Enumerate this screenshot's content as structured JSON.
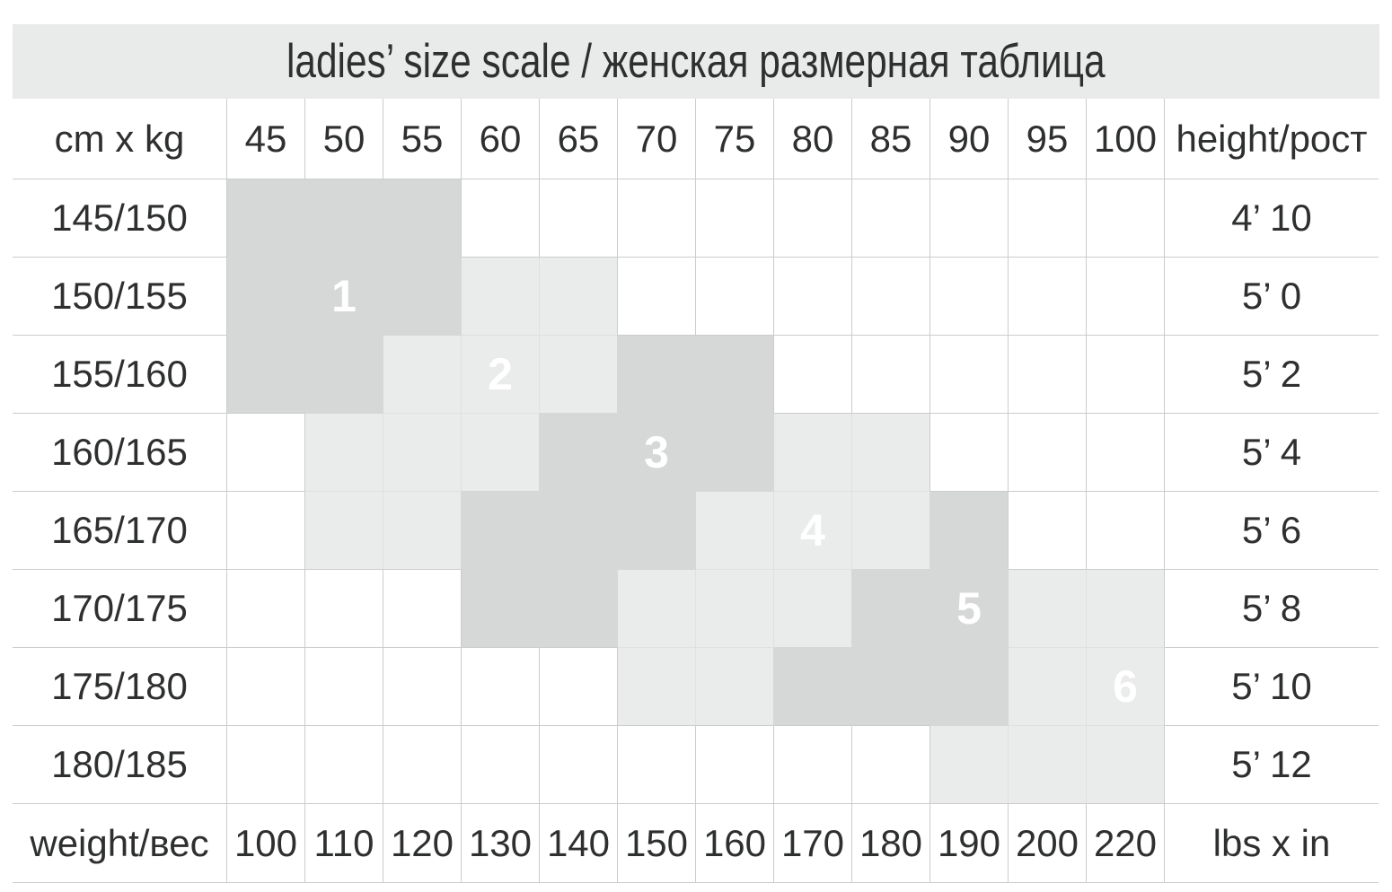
{
  "chart_data": {
    "type": "table",
    "title": "ladies’ size scale / женская размерная таблица",
    "corner_top_left": "cm x kg",
    "corner_top_right": "height/рост",
    "corner_bottom_left": "weight/вес",
    "corner_bottom_right": "lbs x in",
    "columns_kg": [
      "45",
      "50",
      "55",
      "60",
      "65",
      "70",
      "75",
      "80",
      "85",
      "90",
      "95",
      "100"
    ],
    "columns_lbs": [
      "100",
      "110",
      "120",
      "130",
      "140",
      "150",
      "160",
      "170",
      "180",
      "190",
      "200",
      "220"
    ],
    "shading_legend": {
      "0": "none",
      "1": "light",
      "2": "dark"
    },
    "rows": [
      {
        "height_cm": "145/150",
        "height_ft": "4’ 10",
        "shading": [
          2,
          2,
          2,
          0,
          0,
          0,
          0,
          0,
          0,
          0,
          0,
          0
        ],
        "size_label": "",
        "size_col": -1
      },
      {
        "height_cm": "150/155",
        "height_ft": "5’ 0",
        "shading": [
          2,
          2,
          2,
          1,
          1,
          0,
          0,
          0,
          0,
          0,
          0,
          0
        ],
        "size_label": "1",
        "size_col": 1
      },
      {
        "height_cm": "155/160",
        "height_ft": "5’ 2",
        "shading": [
          2,
          2,
          1,
          1,
          1,
          2,
          2,
          0,
          0,
          0,
          0,
          0
        ],
        "size_label": "2",
        "size_col": 3
      },
      {
        "height_cm": "160/165",
        "height_ft": "5’ 4",
        "shading": [
          0,
          1,
          1,
          1,
          2,
          2,
          2,
          1,
          1,
          0,
          0,
          0
        ],
        "size_label": "3",
        "size_col": 5
      },
      {
        "height_cm": "165/170",
        "height_ft": "5’ 6",
        "shading": [
          0,
          1,
          1,
          2,
          2,
          2,
          1,
          1,
          1,
          2,
          0,
          0
        ],
        "size_label": "4",
        "size_col": 7
      },
      {
        "height_cm": "170/175",
        "height_ft": "5’ 8",
        "shading": [
          0,
          0,
          0,
          2,
          2,
          1,
          1,
          1,
          2,
          2,
          1,
          1
        ],
        "size_label": "5",
        "size_col": 9
      },
      {
        "height_cm": "175/180",
        "height_ft": "5’ 10",
        "shading": [
          0,
          0,
          0,
          0,
          0,
          1,
          1,
          2,
          2,
          2,
          1,
          1
        ],
        "size_label": "6",
        "size_col": 11
      },
      {
        "height_cm": "180/185",
        "height_ft": "5’ 12",
        "shading": [
          0,
          0,
          0,
          0,
          0,
          0,
          0,
          0,
          0,
          1,
          1,
          1
        ],
        "size_label": "",
        "size_col": -1
      }
    ],
    "size_zones": [
      {
        "size": "1",
        "label_row_cm": "150/155",
        "label_col_kg": "50"
      },
      {
        "size": "2",
        "label_row_cm": "155/160",
        "label_col_kg": "60"
      },
      {
        "size": "3",
        "label_row_cm": "160/165",
        "label_col_kg": "70"
      },
      {
        "size": "4",
        "label_row_cm": "165/170",
        "label_col_kg": "80"
      },
      {
        "size": "5",
        "label_row_cm": "170/175",
        "label_col_kg": "90"
      },
      {
        "size": "6",
        "label_row_cm": "175/180",
        "label_col_kg": "100"
      }
    ],
    "colors": {
      "dark_zone": "#d6d7d7",
      "light_zone": "#eaebeb",
      "title_bg": "#e9eaea",
      "grid_line": "#cccccc",
      "light_zone_line": "#dfe0e0",
      "text": "#2e2f2f",
      "zone_number": "#ffffff"
    }
  }
}
